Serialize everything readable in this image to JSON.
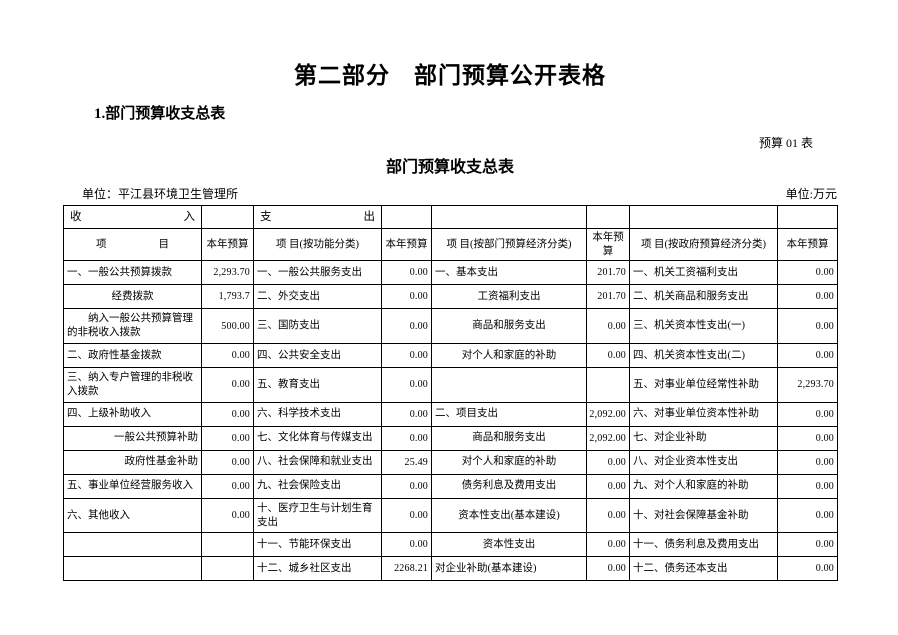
{
  "page": {
    "part_title": "第二部分　部门预算公开表格",
    "section_no_title": "1.部门预算收支总表",
    "sheet_label": "预算 01 表",
    "table_title": "部门预算收支总表",
    "org_unit": "单位：平江县环境卫生管理所",
    "currency_unit": "单位:万元"
  },
  "table": {
    "groups": {
      "income": "收入",
      "expenditure": "支出"
    },
    "headers": {
      "item": "项目",
      "budget": "本年预算",
      "func_item": "项 目(按功能分类)",
      "dept_item": "项 目(按部门预算经济分类)",
      "gov_item": "项 目(按政府预算经济分类)"
    },
    "rows": [
      [
        {
          "t": "一、一般公共预算拨款",
          "lv": "t"
        },
        "2,293.70",
        {
          "t": "一、一般公共服务支出",
          "lv": "t"
        },
        "0.00",
        {
          "t": "一、基本支出",
          "lv": "t"
        },
        "201.70",
        {
          "t": "一、机关工资福利支出",
          "lv": "t"
        },
        "0.00"
      ],
      [
        {
          "t": "经费拨款",
          "lv": "c"
        },
        "1,793.7",
        {
          "t": "二、外交支出",
          "lv": "t"
        },
        "0.00",
        {
          "t": "工资福利支出",
          "lv": "c"
        },
        "201.70",
        {
          "t": "二、机关商品和服务支出",
          "lv": "t"
        },
        "0.00"
      ],
      [
        {
          "t": "纳入一般公共预算管理的非税收入拨款",
          "lv": "ti"
        },
        "500.00",
        {
          "t": "三、国防支出",
          "lv": "t"
        },
        "0.00",
        {
          "t": "商品和服务支出",
          "lv": "c"
        },
        "0.00",
        {
          "t": "三、机关资本性支出(一)",
          "lv": "t"
        },
        "0.00"
      ],
      [
        {
          "t": "二、政府性基金拨款",
          "lv": "t"
        },
        "0.00",
        {
          "t": "四、公共安全支出",
          "lv": "t"
        },
        "0.00",
        {
          "t": "对个人和家庭的补助",
          "lv": "c"
        },
        "0.00",
        {
          "t": "四、机关资本性支出(二)",
          "lv": "t"
        },
        "0.00"
      ],
      [
        {
          "t": "三、纳入专户管理的非税收入拨款",
          "lv": "t"
        },
        "0.00",
        {
          "t": "五、教育支出",
          "lv": "t"
        },
        "0.00",
        {
          "t": "",
          "lv": "c"
        },
        "",
        {
          "t": "五、对事业单位经常性补助",
          "lv": "t"
        },
        "2,293.70"
      ],
      [
        {
          "t": "四、上级补助收入",
          "lv": "t"
        },
        "0.00",
        {
          "t": "六、科学技术支出",
          "lv": "t"
        },
        "0.00",
        {
          "t": "二、项目支出",
          "lv": "t"
        },
        "2,092.00",
        {
          "t": "六、对事业单位资本性补助",
          "lv": "t"
        },
        "0.00"
      ],
      [
        {
          "t": "一般公共预算补助",
          "lv": "r"
        },
        "0.00",
        {
          "t": "七、文化体育与传媒支出",
          "lv": "t"
        },
        "0.00",
        {
          "t": "商品和服务支出",
          "lv": "c"
        },
        "2,092.00",
        {
          "t": "七、对企业补助",
          "lv": "t"
        },
        "0.00"
      ],
      [
        {
          "t": "政府性基金补助",
          "lv": "r"
        },
        "0.00",
        {
          "t": "八、社会保障和就业支出",
          "lv": "t"
        },
        "25.49",
        {
          "t": "对个人和家庭的补助",
          "lv": "c"
        },
        "0.00",
        {
          "t": "八、对企业资本性支出",
          "lv": "t"
        },
        "0.00"
      ],
      [
        {
          "t": "五、事业单位经营服务收入",
          "lv": "t"
        },
        "0.00",
        {
          "t": "九、社会保险支出",
          "lv": "t"
        },
        "0.00",
        {
          "t": "债务利息及费用支出",
          "lv": "c"
        },
        "0.00",
        {
          "t": "九、对个人和家庭的补助",
          "lv": "t"
        },
        "0.00"
      ],
      [
        {
          "t": "六、其他收入",
          "lv": "t"
        },
        "0.00",
        {
          "t": "十、医疗卫生与计划生育支出",
          "lv": "t"
        },
        "0.00",
        {
          "t": "资本性支出(基本建设)",
          "lv": "c"
        },
        "0.00",
        {
          "t": "十、对社会保障基金补助",
          "lv": "t"
        },
        "0.00"
      ],
      [
        {
          "t": "",
          "lv": "t"
        },
        "",
        {
          "t": "十一、节能环保支出",
          "lv": "t"
        },
        "0.00",
        {
          "t": "资本性支出",
          "lv": "c"
        },
        "0.00",
        {
          "t": "十一、债务利息及费用支出",
          "lv": "t"
        },
        "0.00"
      ],
      [
        {
          "t": "",
          "lv": "t"
        },
        "",
        {
          "t": "十二、城乡社区支出",
          "lv": "t"
        },
        "2268.21",
        {
          "t": "对企业补助(基本建设)",
          "lv": "l"
        },
        "0.00",
        {
          "t": "十二、债务还本支出",
          "lv": "t"
        },
        "0.00"
      ]
    ]
  }
}
